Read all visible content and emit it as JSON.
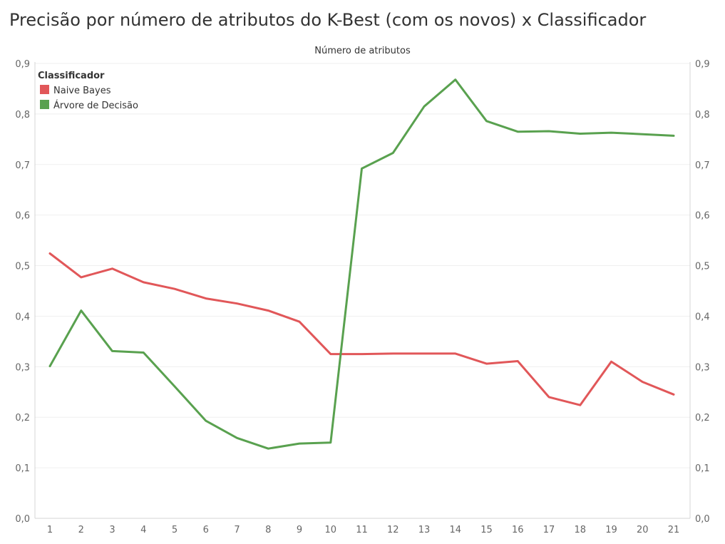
{
  "chart_data": {
    "type": "line",
    "title": "Precisão por número de atributos do K-Best (com os novos) x Classificador",
    "xlabel": "Número de atributos",
    "ylabel": "",
    "x": [
      "1",
      "2",
      "3",
      "4",
      "5",
      "6",
      "7",
      "8",
      "9",
      "10",
      "11",
      "12",
      "13",
      "14",
      "15",
      "16",
      "17",
      "18",
      "19",
      "20",
      "21"
    ],
    "ylim": [
      0,
      0.9
    ],
    "yticks": [
      "0,0",
      "0,1",
      "0,2",
      "0,3",
      "0,4",
      "0,5",
      "0,6",
      "0,7",
      "0,8",
      "0,9"
    ],
    "grid": true,
    "legend": {
      "title": "Classificador",
      "placement": "top-left"
    },
    "series": [
      {
        "name": "Naive Bayes",
        "color": "#e15759",
        "values": [
          0.524,
          0.477,
          0.494,
          0.467,
          0.454,
          0.435,
          0.425,
          0.411,
          0.389,
          0.325,
          0.325,
          0.326,
          0.326,
          0.326,
          0.306,
          0.311,
          0.24,
          0.224,
          0.31,
          0.27,
          0.245
        ]
      },
      {
        "name": "Árvore de Decisão",
        "color": "#59a14f",
        "values": [
          0.301,
          0.411,
          0.331,
          0.328,
          0.261,
          0.193,
          0.159,
          0.138,
          0.148,
          0.15,
          0.692,
          0.723,
          0.815,
          0.868,
          0.786,
          0.765,
          0.766,
          0.761,
          0.763,
          0.76,
          0.757
        ]
      }
    ]
  }
}
